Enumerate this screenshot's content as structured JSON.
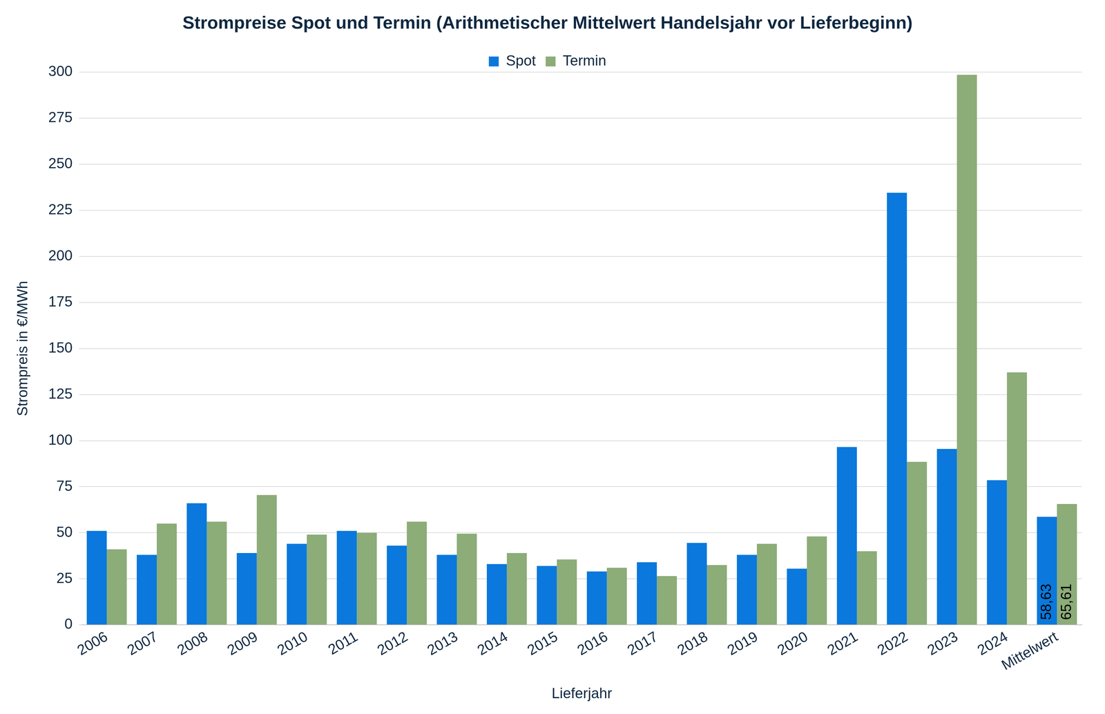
{
  "chart_data": {
    "type": "bar",
    "title": "Strompreise Spot und Termin (Arithmetischer Mittelwert Handelsjahr vor Lieferbeginn)",
    "x_label": "Lieferjahr",
    "y_label": "Strompreis in €/MWh",
    "categories": [
      "2006",
      "2007",
      "2008",
      "2009",
      "2010",
      "2011",
      "2012",
      "2013",
      "2014",
      "2015",
      "2016",
      "2017",
      "2018",
      "2019",
      "2020",
      "2021",
      "2022",
      "2023",
      "2024",
      "Mittelwert"
    ],
    "series": [
      {
        "name": "Spot",
        "color": "#0a78dc",
        "values": [
          51,
          38,
          66,
          39,
          44,
          51,
          43,
          38,
          33,
          32,
          29,
          34,
          44.5,
          38,
          30.5,
          96.5,
          234.5,
          95.5,
          78.5,
          58.63
        ],
        "value_labels": [
          null,
          null,
          null,
          null,
          null,
          null,
          null,
          null,
          null,
          null,
          null,
          null,
          null,
          null,
          null,
          null,
          null,
          null,
          null,
          "58,63"
        ]
      },
      {
        "name": "Termin",
        "color": "#8cac78",
        "values": [
          41,
          55,
          56,
          70.5,
          49,
          50,
          56,
          49.5,
          39,
          35.5,
          31,
          26.5,
          32.5,
          44,
          48,
          40,
          88.5,
          298.5,
          137,
          65.61
        ],
        "value_labels": [
          null,
          null,
          null,
          null,
          null,
          null,
          null,
          null,
          null,
          null,
          null,
          null,
          null,
          null,
          null,
          null,
          null,
          null,
          null,
          "65,61"
        ]
      }
    ],
    "ylim": [
      0,
      300
    ],
    "yticks": [
      0,
      25,
      50,
      75,
      100,
      125,
      150,
      175,
      200,
      225,
      250,
      275,
      300
    ],
    "grid": true,
    "legend": "top",
    "data_labels": true
  }
}
